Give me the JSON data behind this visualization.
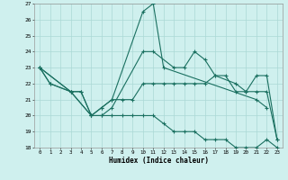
{
  "xlabel": "Humidex (Indice chaleur)",
  "series": {
    "s1_x": [
      0,
      1,
      3,
      4,
      5,
      6,
      7,
      10,
      11,
      12,
      21,
      22
    ],
    "s1_y": [
      23,
      22,
      21.5,
      21.5,
      20,
      20.5,
      21,
      26.5,
      27,
      23,
      21,
      20.5
    ],
    "s2_x": [
      0,
      1,
      3,
      5,
      6,
      7,
      8,
      9,
      10,
      11,
      12,
      13,
      14,
      15,
      16,
      17,
      19,
      20,
      21,
      22,
      23
    ],
    "s2_y": [
      23,
      22,
      21.5,
      20,
      20.5,
      21,
      21,
      21,
      22,
      22,
      22,
      22,
      22,
      22,
      22,
      22.5,
      22,
      21.5,
      21.5,
      21.5,
      18.5
    ],
    "s3_x": [
      0,
      3,
      4,
      5,
      6,
      7,
      10,
      11,
      13,
      14,
      15,
      16,
      17,
      18,
      19,
      20,
      21,
      22,
      23
    ],
    "s3_y": [
      23,
      21.5,
      21.5,
      20,
      20.0,
      20.5,
      24,
      24,
      23,
      23,
      24,
      23.5,
      22.5,
      22.5,
      21.5,
      21.5,
      22.5,
      22.5,
      18.5
    ],
    "s4_x": [
      0,
      3,
      5,
      6,
      7,
      8,
      9,
      10,
      11,
      12,
      13,
      14,
      15,
      16,
      17,
      18,
      19,
      20,
      21,
      22,
      23
    ],
    "s4_y": [
      23,
      21.5,
      20,
      20,
      20,
      20,
      20,
      20,
      20,
      19.5,
      19,
      19,
      19,
      18.5,
      18.5,
      18.5,
      18,
      18,
      18,
      18.5,
      18
    ]
  },
  "ylim": [
    18,
    27
  ],
  "xlim": [
    -0.5,
    23.5
  ],
  "yticks": [
    18,
    19,
    20,
    21,
    22,
    23,
    24,
    25,
    26,
    27
  ],
  "xticks": [
    0,
    1,
    2,
    3,
    4,
    5,
    6,
    7,
    8,
    9,
    10,
    11,
    12,
    13,
    14,
    15,
    16,
    17,
    18,
    19,
    20,
    21,
    22,
    23
  ],
  "bg_color": "#cff0ee",
  "grid_color": "#aad8d5",
  "line_color": "#1a7060",
  "fig_bg": "#cff0ee"
}
